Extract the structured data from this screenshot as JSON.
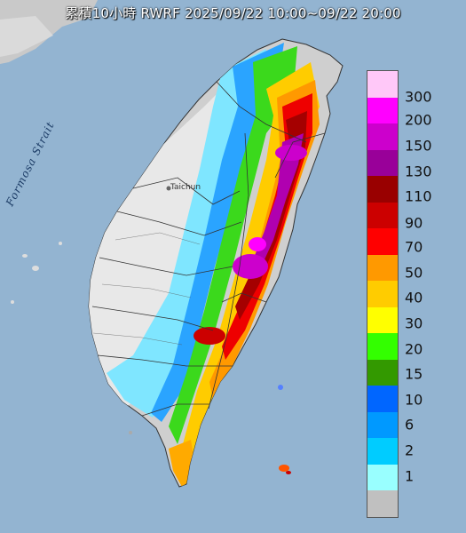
{
  "header": {
    "title": "累積10小時 RWRF 2025/09/22 10:00~09/22 20:00"
  },
  "map": {
    "sea_label": "Formosa Strait",
    "city_label": "Taichun"
  },
  "legend": {
    "unit": "",
    "items": [
      {
        "label": "300",
        "color": "#ffc8f8"
      },
      {
        "label": "200",
        "color": "#ff00ff"
      },
      {
        "label": "150",
        "color": "#cc00cc"
      },
      {
        "label": "130",
        "color": "#990099"
      },
      {
        "label": "110",
        "color": "#990000"
      },
      {
        "label": "90",
        "color": "#cc0000"
      },
      {
        "label": "70",
        "color": "#ff0000"
      },
      {
        "label": "50",
        "color": "#ff9900"
      },
      {
        "label": "40",
        "color": "#ffcc00"
      },
      {
        "label": "30",
        "color": "#ffff00"
      },
      {
        "label": "20",
        "color": "#33ff00"
      },
      {
        "label": "15",
        "color": "#339900"
      },
      {
        "label": "10",
        "color": "#0066ff"
      },
      {
        "label": "6",
        "color": "#0099ff"
      },
      {
        "label": "2",
        "color": "#00ccff"
      },
      {
        "label": "1",
        "color": "#99ffff"
      },
      {
        "label": "",
        "color": "#c0c0c0"
      }
    ]
  }
}
